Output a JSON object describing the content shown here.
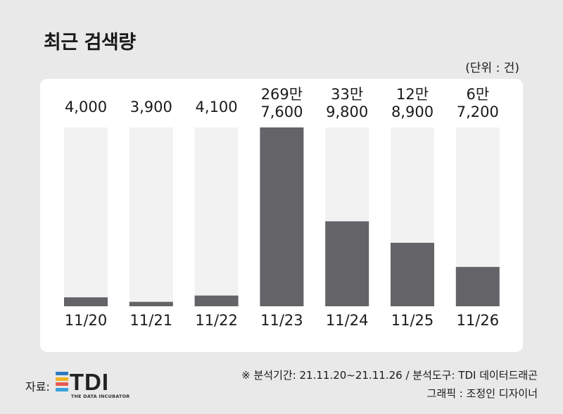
{
  "title": "최근 검색량",
  "unit_label": "(단위 : 건)",
  "chart_data": {
    "type": "bar",
    "categories": [
      "11/20",
      "11/21",
      "11/22",
      "11/23",
      "11/24",
      "11/25",
      "11/26"
    ],
    "values": [
      4000,
      3900,
      4100,
      2697600,
      339800,
      128900,
      67200
    ],
    "value_labels": [
      [
        "4,000"
      ],
      [
        "3,900"
      ],
      [
        "4,100"
      ],
      [
        "269만",
        "7,600"
      ],
      [
        "33만",
        "9,800"
      ],
      [
        "12만",
        "8,900"
      ],
      [
        "6만",
        "7,200"
      ]
    ],
    "fill_fractions": [
      0.05,
      0.025,
      0.06,
      1.0,
      0.475,
      0.355,
      0.22
    ],
    "colors": {
      "bar": "#636368",
      "track": "#f2f2f2"
    }
  },
  "footer": {
    "source_label": "자료:",
    "logo_text": "TDI",
    "logo_subtitle": "THE DATA INCUBATOR",
    "logo_colors": [
      "#2e7cc0",
      "#f0b423",
      "#e85a4f",
      "#3aa0d8"
    ],
    "note_line1": "※ 분석기간: 21.11.20~21.11.26 / 분석도구: TDI 데이터드래곤",
    "note_line2": "그래픽 : 조정인 디자이너"
  }
}
